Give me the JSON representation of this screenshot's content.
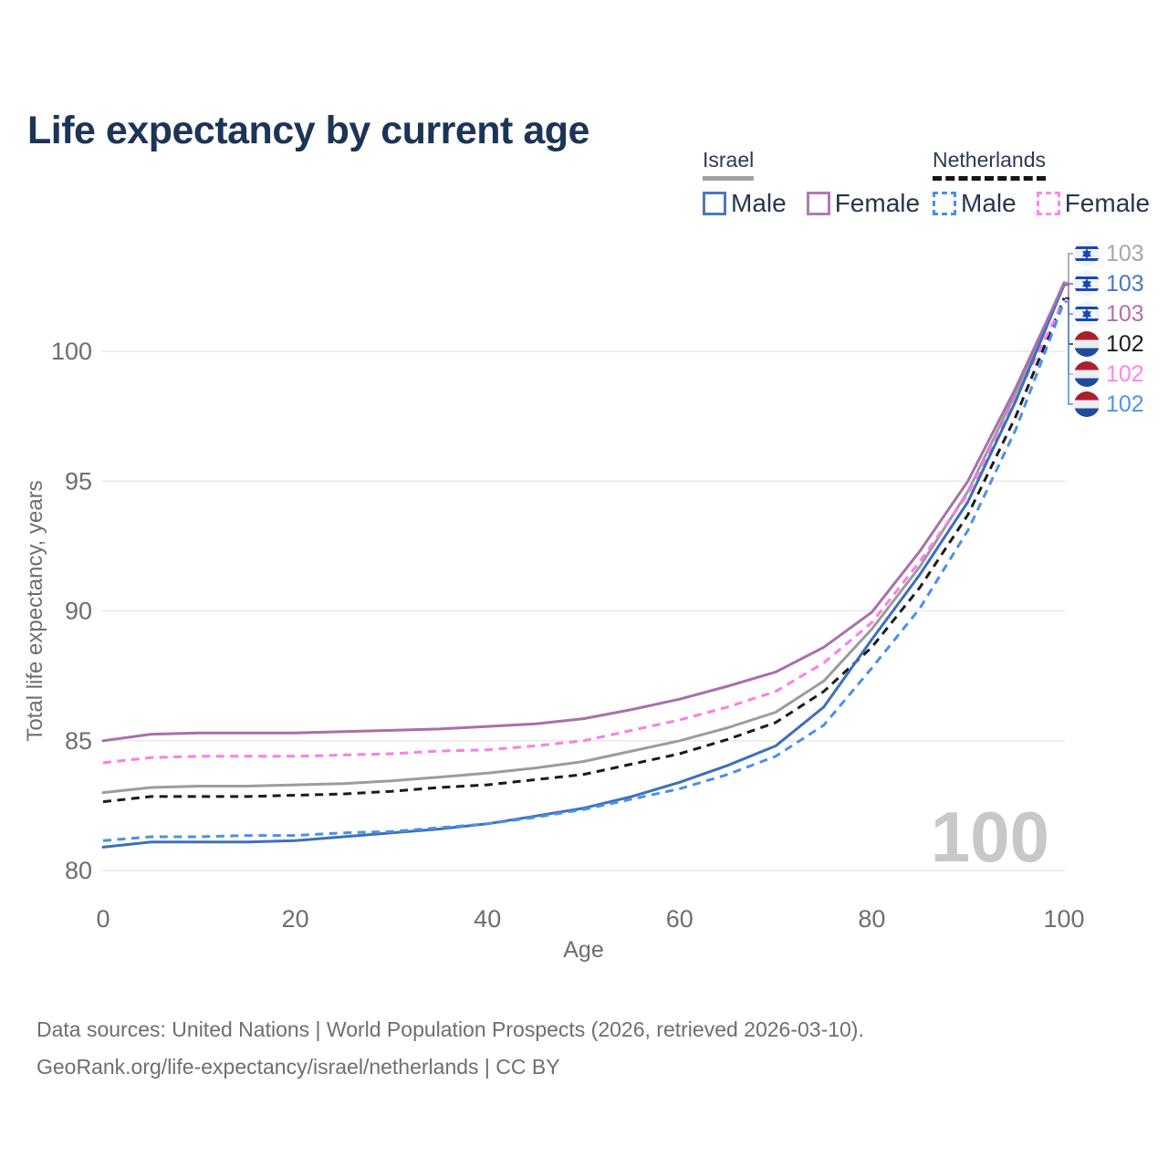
{
  "title": "Life expectancy by current age",
  "legend": {
    "israel": {
      "name": "Israel",
      "male": "Male",
      "female": "Female"
    },
    "netherlands": {
      "name": "Netherlands",
      "male": "Male",
      "female": "Female"
    }
  },
  "watermark": "100",
  "footer": {
    "line1": "Data sources: United Nations | World Population Prospects (2026, retrieved 2026-03-10).",
    "line2": "GeoRank.org/life-expectancy/israel/netherlands | CC BY"
  },
  "colors": {
    "title": "#1c3455",
    "axis_text": "#6e6e6e",
    "gridline": "#e9e9e9",
    "watermark": "#c8c8c8"
  },
  "chart_data": {
    "type": "line",
    "title": "Life expectancy by current age",
    "xlabel": "Age",
    "ylabel": "Total life expectancy, years",
    "xlim": [
      0,
      100
    ],
    "ylim": [
      79.5,
      103.5
    ],
    "x_ticks": [
      0,
      20,
      40,
      60,
      80,
      100
    ],
    "y_ticks": [
      80,
      85,
      90,
      95,
      100
    ],
    "grid": "horizontal",
    "legend_position": "top-right",
    "x": [
      0,
      5,
      10,
      15,
      20,
      25,
      30,
      35,
      40,
      45,
      50,
      55,
      60,
      65,
      70,
      75,
      80,
      85,
      90,
      95,
      100
    ],
    "series": [
      {
        "id": "israel-total",
        "name": "Israel (both sexes)",
        "color": "#9c9c9c",
        "dashed": false,
        "values": [
          83.0,
          83.2,
          83.25,
          83.25,
          83.3,
          83.35,
          83.45,
          83.6,
          83.75,
          83.95,
          84.2,
          84.6,
          85.0,
          85.5,
          86.1,
          87.3,
          89.3,
          91.7,
          94.6,
          98.4,
          102.65
        ]
      },
      {
        "id": "netherlands-total",
        "name": "Netherlands (both sexes)",
        "color": "#1b1b1b",
        "dashed": true,
        "values": [
          82.65,
          82.85,
          82.85,
          82.85,
          82.9,
          82.95,
          83.05,
          83.2,
          83.3,
          83.5,
          83.7,
          84.1,
          84.5,
          85.05,
          85.7,
          86.9,
          88.6,
          90.9,
          93.7,
          97.5,
          102.05
        ]
      },
      {
        "id": "netherlands-female",
        "name": "Netherlands Female",
        "color": "#fb7de9",
        "dashed": true,
        "values": [
          84.15,
          84.35,
          84.4,
          84.4,
          84.4,
          84.45,
          84.5,
          84.6,
          84.65,
          84.8,
          85.0,
          85.4,
          85.8,
          86.3,
          86.9,
          88.0,
          89.55,
          91.9,
          94.5,
          98.2,
          101.95
        ]
      },
      {
        "id": "israel-male",
        "name": "Israel Male",
        "color": "#3d70b8",
        "dashed": false,
        "values": [
          80.9,
          81.1,
          81.1,
          81.1,
          81.15,
          81.3,
          81.45,
          81.6,
          81.8,
          82.1,
          82.4,
          82.85,
          83.4,
          84.05,
          84.8,
          86.3,
          88.9,
          91.4,
          94.2,
          98.1,
          102.55
        ]
      },
      {
        "id": "netherlands-male",
        "name": "Netherlands Male",
        "color": "#4a90e9",
        "dashed": true,
        "values": [
          81.15,
          81.3,
          81.3,
          81.35,
          81.35,
          81.45,
          81.5,
          81.65,
          81.8,
          82.05,
          82.35,
          82.75,
          83.15,
          83.7,
          84.4,
          85.6,
          87.8,
          90.1,
          93.1,
          97.0,
          101.9
        ]
      },
      {
        "id": "israel-female",
        "name": "Israel Female",
        "color": "#a86fad",
        "dashed": false,
        "values": [
          85.0,
          85.25,
          85.3,
          85.3,
          85.3,
          85.35,
          85.4,
          85.45,
          85.55,
          85.65,
          85.85,
          86.2,
          86.6,
          87.1,
          87.65,
          88.6,
          89.95,
          92.3,
          95.0,
          98.6,
          102.6
        ]
      }
    ]
  },
  "end_labels": [
    {
      "series": "israel-total",
      "flag": "israel",
      "value": "103",
      "color": "#a6a6a6"
    },
    {
      "series": "israel-male",
      "flag": "israel",
      "value": "103",
      "color": "#4477c1"
    },
    {
      "series": "israel-female",
      "flag": "israel",
      "value": "103",
      "color": "#b06fb0"
    },
    {
      "series": "netherlands-total",
      "flag": "netherlands",
      "value": "102",
      "color": "#1b1b1b"
    },
    {
      "series": "netherlands-female",
      "flag": "netherlands",
      "value": "102",
      "color": "#ff85ef"
    },
    {
      "series": "netherlands-male",
      "flag": "netherlands",
      "value": "102",
      "color": "#4a94f1"
    }
  ]
}
